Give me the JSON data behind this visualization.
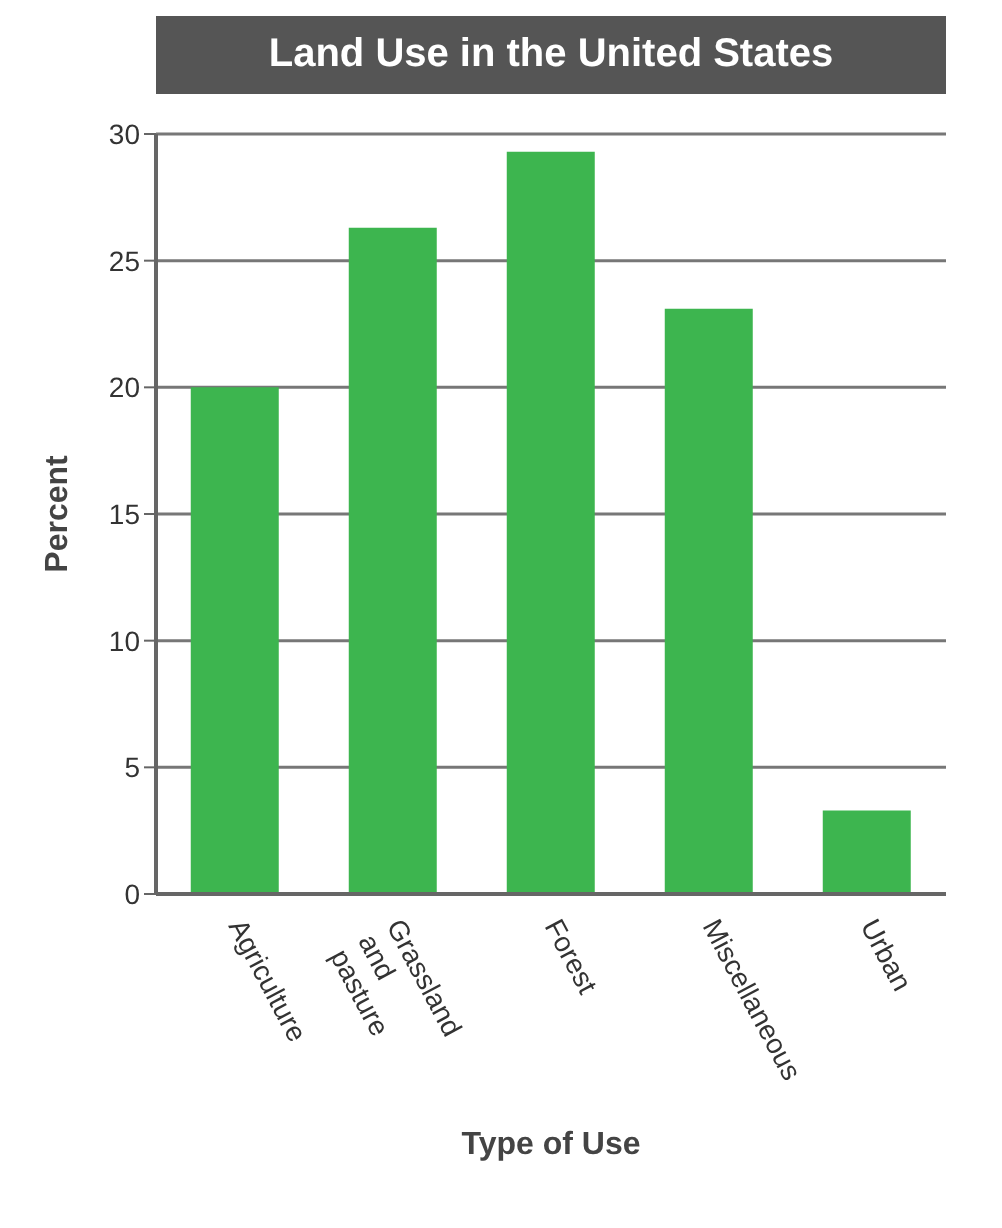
{
  "chart_data": {
    "type": "bar",
    "title": "Land Use in the United States",
    "xlabel": "Type of Use",
    "ylabel": "Percent",
    "categories": [
      "Agriculture",
      "Grassland and pasture",
      "Forest",
      "Miscellaneous",
      "Urban"
    ],
    "values": [
      20,
      26.3,
      29.3,
      23.1,
      3.3
    ],
    "color": "#3db54f",
    "ylim": [
      0,
      30
    ],
    "yticks": [
      0,
      5,
      10,
      15,
      20,
      25,
      30
    ],
    "grid": "y"
  }
}
